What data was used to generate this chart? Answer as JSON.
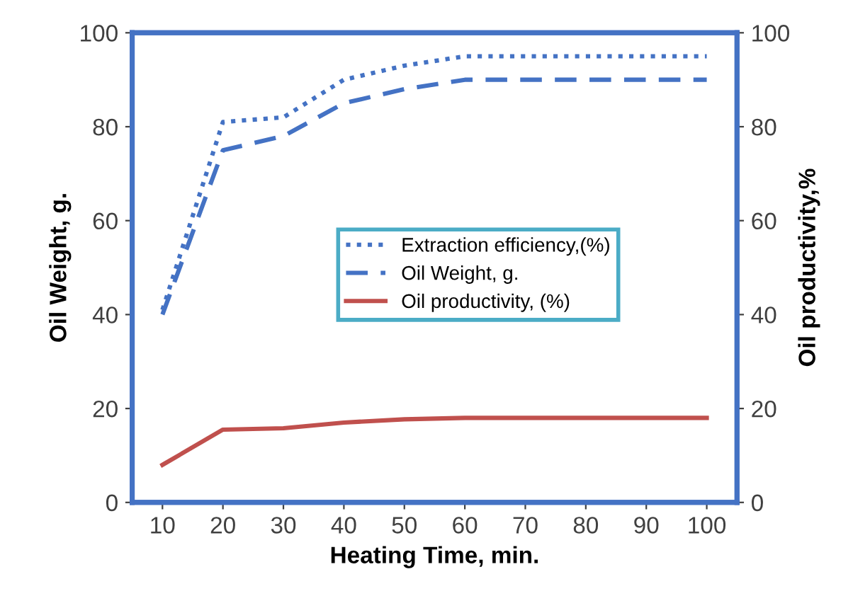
{
  "chart_data": {
    "type": "line",
    "xlabel": "Heating Time, min.",
    "ylabel": "Oil Weight, g.",
    "y2label": "Oil productivity,%",
    "x": [
      10,
      20,
      30,
      40,
      50,
      60,
      70,
      80,
      90,
      100
    ],
    "series": [
      {
        "name": "Extraction efficiency,(%)",
        "color": "#4472c4",
        "line_style": "dotted",
        "values": [
          41,
          81,
          82,
          90,
          93,
          95,
          95,
          95,
          95,
          95
        ]
      },
      {
        "name": "Oil Weight, g.",
        "color": "#4472c4",
        "line_style": "dashed",
        "values": [
          40,
          75,
          78,
          85,
          88,
          90,
          90,
          90,
          90,
          90
        ]
      },
      {
        "name": "Oil productivity, (%)",
        "color": "#c0504d",
        "line_style": "solid",
        "values": [
          8,
          15.5,
          15.8,
          17,
          17.7,
          18,
          18,
          18,
          18,
          18
        ]
      }
    ],
    "xlim": [
      5,
      105
    ],
    "xticks": [
      10,
      20,
      30,
      40,
      50,
      60,
      70,
      80,
      90,
      100
    ],
    "ylim": [
      0,
      100
    ],
    "yticks": [
      0,
      20,
      40,
      60,
      80,
      100
    ],
    "y2lim": [
      0,
      100
    ],
    "y2ticks": [
      0,
      20,
      40,
      60,
      80,
      100
    ],
    "grid": false,
    "legend": "center right"
  }
}
